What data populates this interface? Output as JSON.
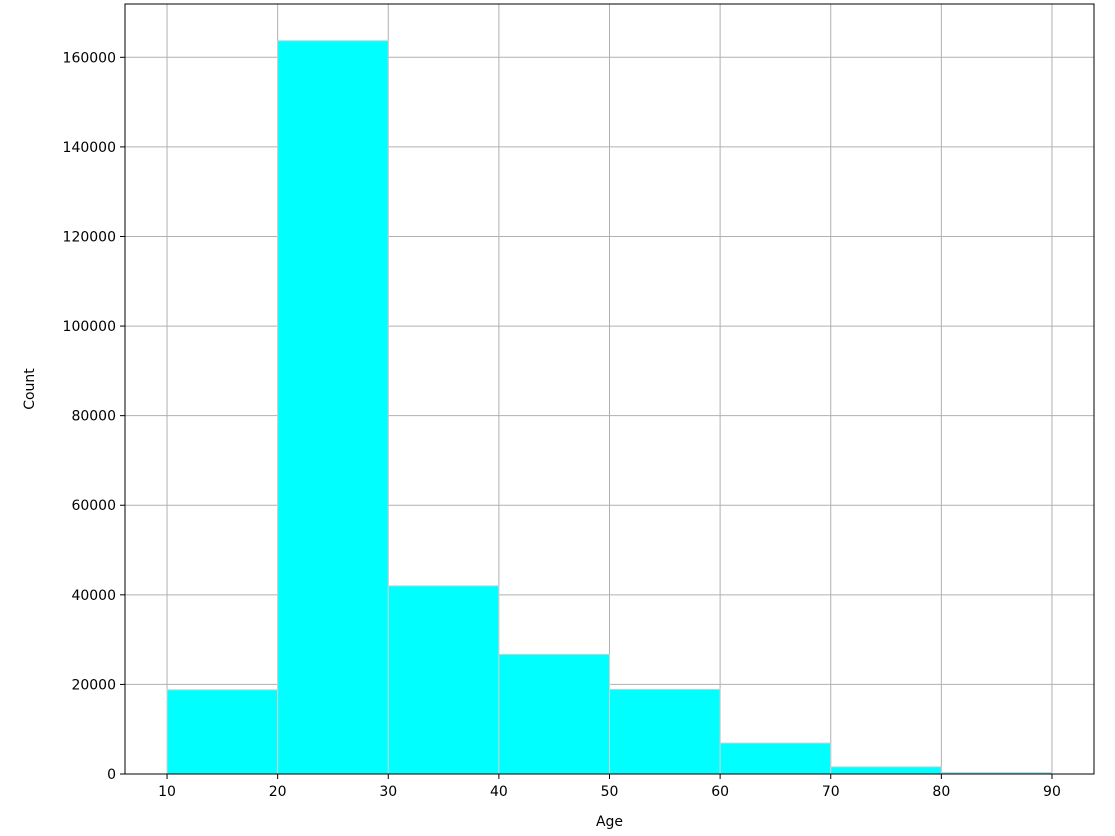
{
  "chart_data": {
    "type": "bar",
    "title": "",
    "xlabel": "Age",
    "ylabel": "Count",
    "bins": [
      {
        "start": 10,
        "end": 20,
        "count": 18800
      },
      {
        "start": 20,
        "end": 30,
        "count": 163700
      },
      {
        "start": 30,
        "end": 40,
        "count": 42000
      },
      {
        "start": 40,
        "end": 50,
        "count": 26700
      },
      {
        "start": 50,
        "end": 60,
        "count": 18900
      },
      {
        "start": 60,
        "end": 70,
        "count": 6900
      },
      {
        "start": 70,
        "end": 80,
        "count": 1600
      },
      {
        "start": 80,
        "end": 90,
        "count": 300
      }
    ],
    "xlim": [
      6.2,
      93.8
    ],
    "ylim": [
      0,
      171900
    ],
    "xticks": [
      10,
      20,
      30,
      40,
      50,
      60,
      70,
      80,
      90
    ],
    "yticks": [
      0,
      20000,
      40000,
      60000,
      80000,
      100000,
      120000,
      140000,
      160000
    ],
    "grid": true,
    "bar_color": "#00ffff",
    "edge_color": "#cfcfcf",
    "grid_color": "#b0b0b0"
  }
}
